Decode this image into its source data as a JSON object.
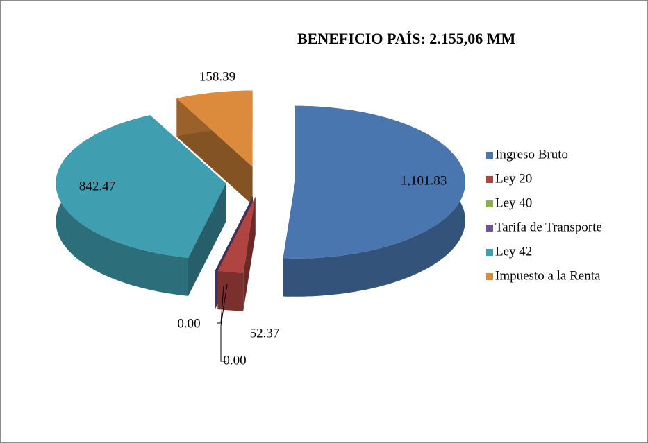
{
  "chart_data": {
    "type": "pie3d",
    "title": "BENEFICIO PAÍS: 2.155,06 MM",
    "categories": [
      "Ingreso Bruto",
      "Ley 20",
      "Ley 40",
      "Tarifa de Transporte",
      "Ley 42",
      "Impuesto a la Renta"
    ],
    "values": [
      1101.83,
      52.37,
      0.0,
      0.0,
      842.47,
      158.39
    ],
    "value_labels": [
      "1,101.83",
      "52.37",
      "0.00",
      "0.00",
      "842.47",
      "158.39"
    ],
    "colors": [
      "#4a76b0",
      "#b04440",
      "#8db04a",
      "#6e5498",
      "#3f9fb0",
      "#dc8a3c"
    ],
    "legend": "right"
  }
}
